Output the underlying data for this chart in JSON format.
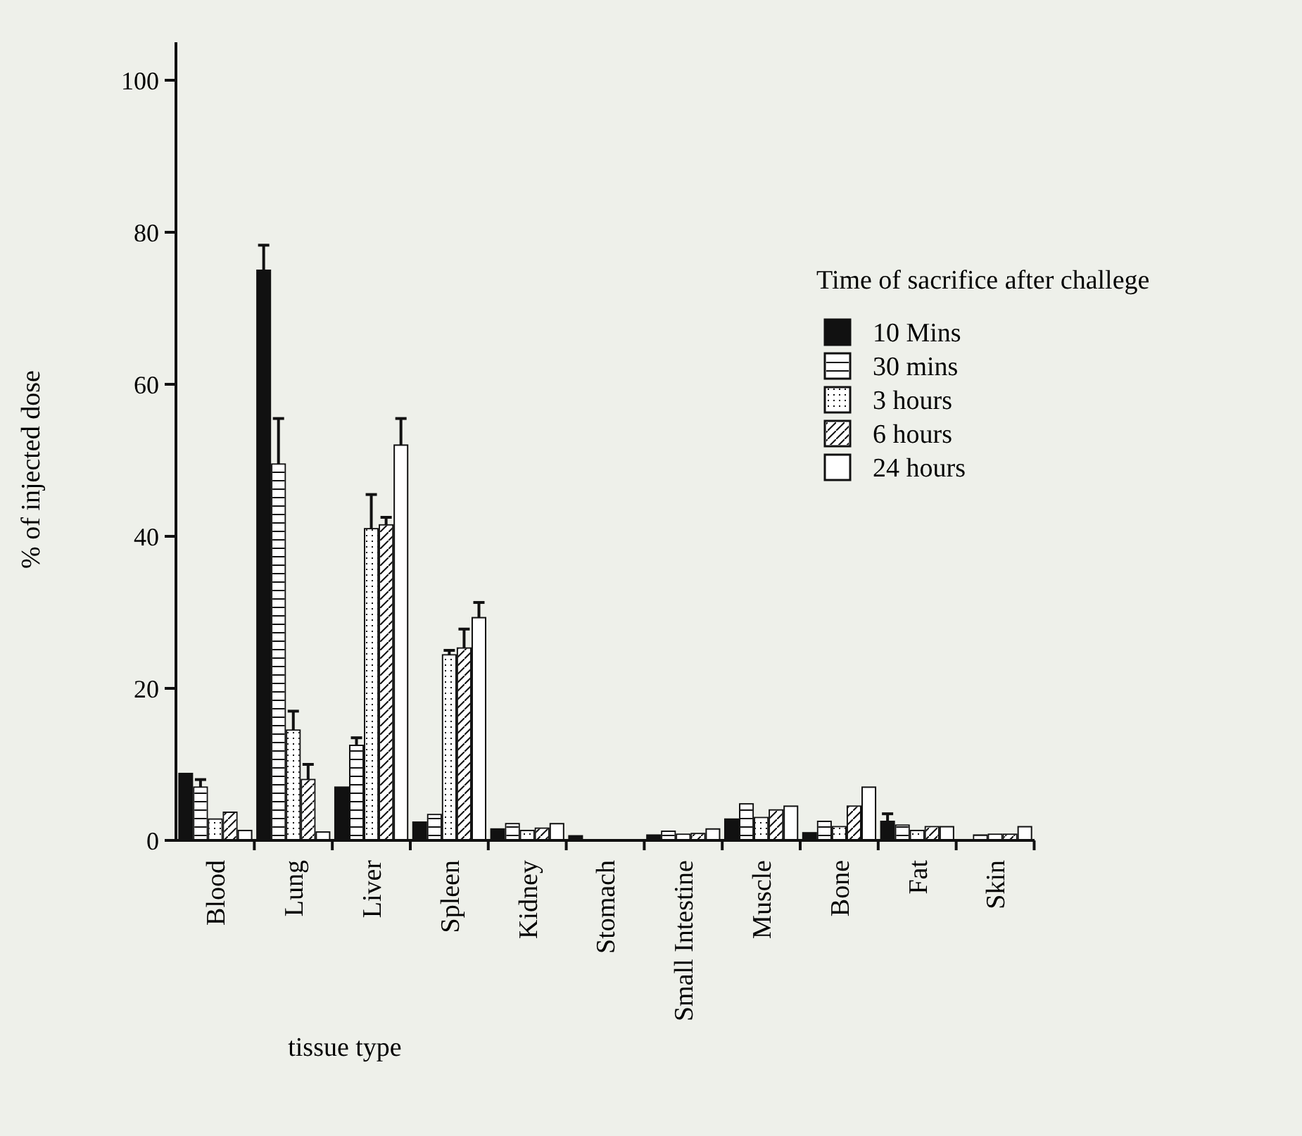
{
  "chart_data": {
    "type": "bar",
    "xlabel": "tissue type",
    "ylabel": "% of injected dose",
    "legend_title": "Time of sacrifice after challege",
    "categories": [
      "Blood",
      "Lung",
      "Liver",
      "Spleen",
      "Kidney",
      "Stomach",
      "Small Intestine",
      "Muscle",
      "Bone",
      "Fat",
      "Skin"
    ],
    "series": [
      {
        "name": "10 Mins",
        "color": "#111111",
        "values": [
          8.8,
          75,
          7,
          2.4,
          1.5,
          0.6,
          0.7,
          2.8,
          1,
          2.5,
          null
        ],
        "errors": [
          null,
          3.3,
          null,
          null,
          null,
          null,
          null,
          null,
          null,
          1,
          null
        ]
      },
      {
        "name": "30 mins",
        "color": "#ffffff",
        "values": [
          7,
          49.5,
          12.5,
          3.4,
          2.2,
          null,
          1.2,
          4.8,
          2.5,
          2,
          0.7
        ],
        "errors": [
          1,
          6,
          1,
          null,
          null,
          null,
          null,
          null,
          null,
          null,
          null
        ]
      },
      {
        "name": "3 hours",
        "color": "#ffffff",
        "values": [
          2.8,
          14.5,
          41,
          24.4,
          1.3,
          0,
          0.8,
          3,
          1.8,
          1.3,
          0.8
        ],
        "errors": [
          null,
          2.5,
          4.5,
          0.6,
          null,
          null,
          null,
          null,
          null,
          null,
          null
        ]
      },
      {
        "name": "6 hours",
        "color": "#ffffff",
        "values": [
          3.7,
          8,
          41.5,
          25.3,
          1.6,
          0,
          0.9,
          4,
          4.5,
          1.8,
          0.8
        ],
        "errors": [
          null,
          2,
          1,
          2.5,
          null,
          null,
          null,
          null,
          null,
          null,
          null
        ]
      },
      {
        "name": "24 hours",
        "color": "#ffffff",
        "values": [
          1.3,
          1.1,
          52,
          29.3,
          2.2,
          0,
          1.5,
          4.5,
          7,
          1.8,
          1.8
        ],
        "errors": [
          null,
          null,
          3.5,
          2,
          null,
          null,
          null,
          null,
          null,
          null,
          null
        ]
      }
    ],
    "ylim": [
      0,
      105
    ],
    "yticks": [
      0,
      20,
      40,
      60,
      80,
      100
    ],
    "legend": "right",
    "grid": false
  }
}
